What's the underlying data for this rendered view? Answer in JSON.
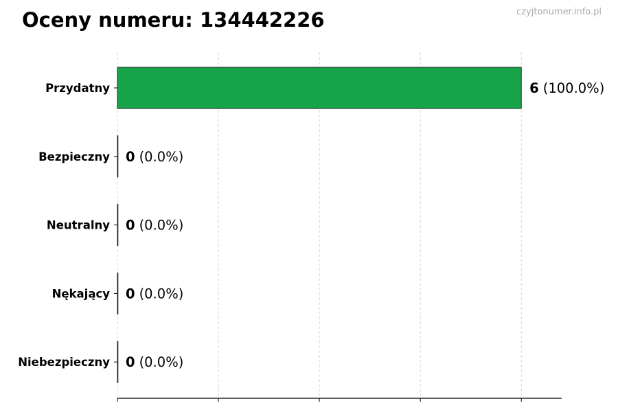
{
  "title": "Oceny numeru: 134442226",
  "watermark": "czyjtonumer.info.pl",
  "chart_data": {
    "type": "bar",
    "orientation": "horizontal",
    "categories": [
      "Przydatny",
      "Bezpieczny",
      "Neutralny",
      "Nękający",
      "Niebezpieczny"
    ],
    "values": [
      6,
      0,
      0,
      0,
      0
    ],
    "data_labels": [
      {
        "count": "6",
        "pct": "(100.0%)"
      },
      {
        "count": "0",
        "pct": "(0.0%)"
      },
      {
        "count": "0",
        "pct": "(0.0%)"
      },
      {
        "count": "0",
        "pct": "(0.0%)"
      },
      {
        "count": "0",
        "pct": "(0.0%)"
      }
    ],
    "xlim": [
      0,
      6.6
    ],
    "xticks": [
      0,
      1.5,
      3,
      4.5,
      6
    ],
    "xtick_labels_shown": false,
    "grid": "vertical dashed",
    "bar_color": "#17a34a",
    "title": "Oceny numeru: 134442226",
    "xlabel": "",
    "ylabel": ""
  }
}
